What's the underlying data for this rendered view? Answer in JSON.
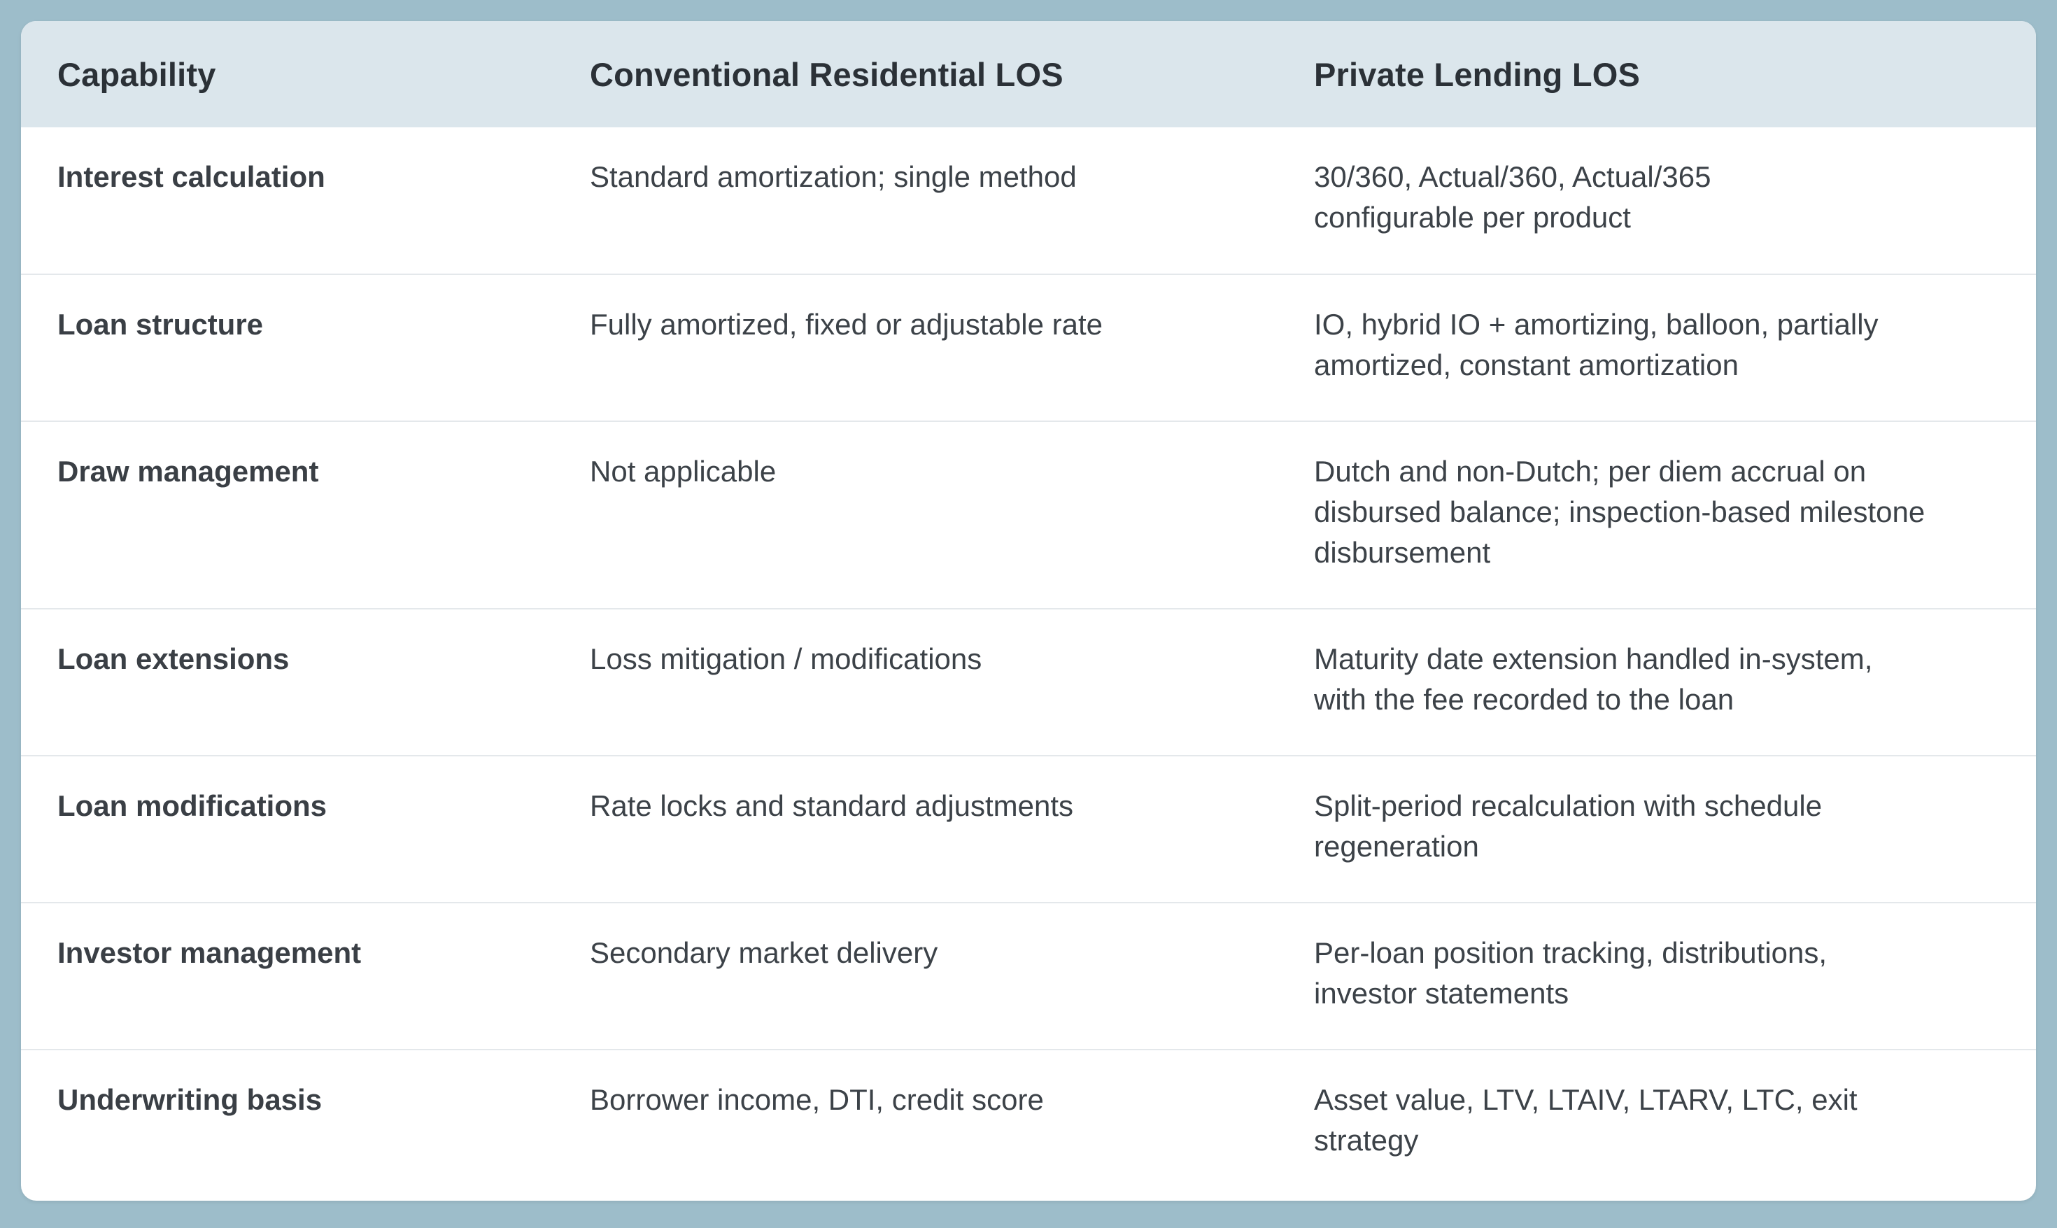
{
  "table": {
    "headers": {
      "capability": "Capability",
      "conventional": "Conventional Residential LOS",
      "private": "Private Lending LOS"
    },
    "rows": [
      {
        "capability": "Interest calculation",
        "conventional": "Standard amortization; single method",
        "private_lines": [
          "30/360, Actual/360, Actual/365",
          "configurable per product"
        ]
      },
      {
        "capability": "Loan structure",
        "conventional": "Fully amortized, fixed or adjustable rate",
        "private_lines": [
          "IO, hybrid IO + amortizing, balloon, partially",
          "amortized, constant amortization"
        ]
      },
      {
        "capability": "Draw management",
        "conventional": "Not applicable",
        "private_lines": [
          "Dutch and non-Dutch; per diem accrual on",
          "disbursed balance; inspection-based milestone",
          "disbursement"
        ]
      },
      {
        "capability": "Loan extensions",
        "conventional": "Loss mitigation / modifications",
        "private_lines": [
          "Maturity date extension handled in-system,",
          "with the fee recorded to the loan"
        ]
      },
      {
        "capability": "Loan modifications",
        "conventional": "Rate locks and standard adjustments",
        "private_lines": [
          "Split-period recalculation with schedule",
          "regeneration"
        ]
      },
      {
        "capability": "Investor management",
        "conventional": "Secondary market delivery",
        "private_lines": [
          "Per-loan position tracking, distributions,",
          "investor statements"
        ]
      },
      {
        "capability": "Underwriting basis",
        "conventional": "Borrower income, DTI, credit score",
        "private_lines": [
          "Asset value, LTV, LTAIV, LTARV, LTC, exit",
          "strategy"
        ]
      }
    ]
  }
}
